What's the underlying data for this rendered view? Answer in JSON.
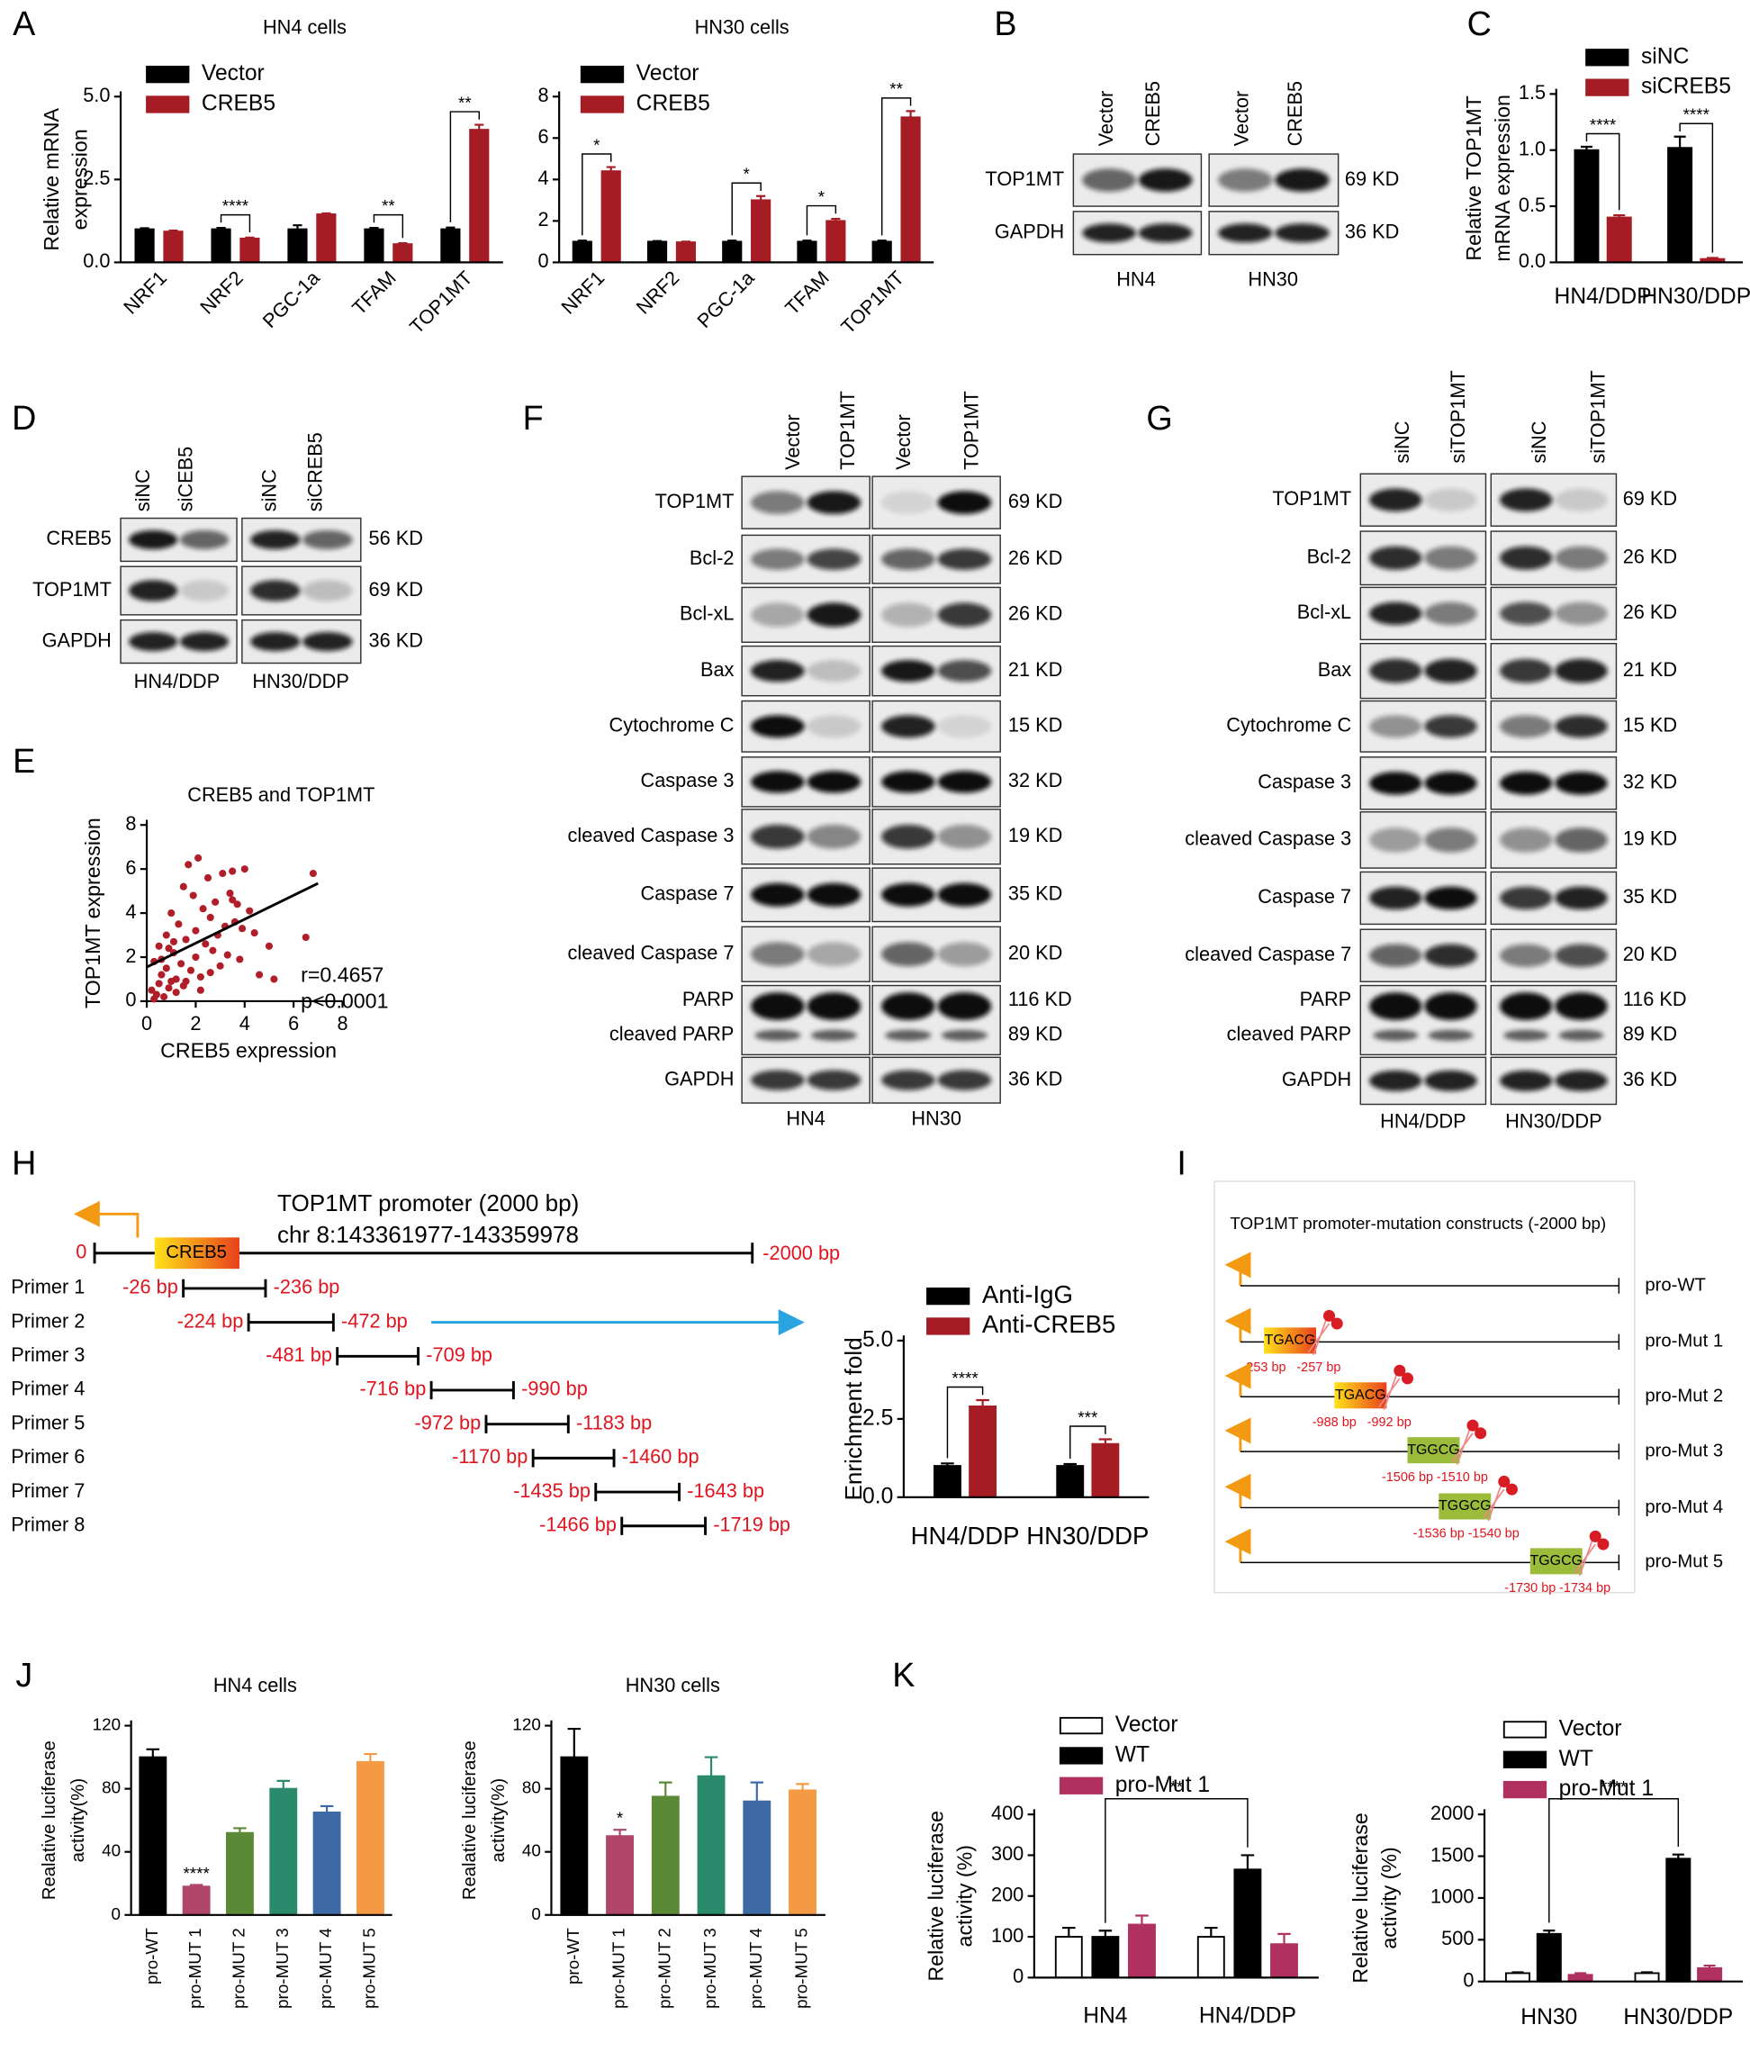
{
  "chart_data": [
    {
      "type": "bar",
      "title": "HN4 cells",
      "categories": [
        "NRF1",
        "NRF2",
        "PGC-1a",
        "TFAM",
        "TOP1MT"
      ],
      "series": [
        {
          "name": "Vector",
          "color": "#000000",
          "values": [
            1,
            1,
            1,
            1,
            1
          ],
          "errors": [
            0.03,
            0.04,
            0.12,
            0.04,
            0.05
          ]
        },
        {
          "name": "CREB5",
          "color": "#a51c24",
          "values": [
            0.93,
            0.72,
            1.45,
            0.55,
            4.0
          ],
          "errors": [
            0.03,
            0.03,
            0.03,
            0.03,
            0.15
          ]
        }
      ],
      "ylim": [
        0,
        5
      ],
      "yticks": [
        {
          "value": 0,
          "label": "0.0"
        },
        {
          "value": 2.5,
          "label": "2.5"
        },
        {
          "value": 5,
          "label": "5.0"
        }
      ],
      "ylabel": [
        "Relative mRNA",
        "expression"
      ],
      "significance": [
        null,
        "****",
        null,
        "**",
        "**"
      ]
    },
    {
      "type": "bar",
      "title": "HN30 cells",
      "categories": [
        "NRF1",
        "NRF2",
        "PGC-1a",
        "TFAM",
        "TOP1MT"
      ],
      "series": [
        {
          "name": "Vector",
          "color": "#000000",
          "values": [
            1,
            1,
            1,
            1,
            1
          ],
          "errors": [
            0.05,
            0.03,
            0.05,
            0.05,
            0.05
          ]
        },
        {
          "name": "CREB5",
          "color": "#a51c24",
          "values": [
            4.4,
            0.97,
            3.0,
            2.0,
            7.0
          ],
          "errors": [
            0.2,
            0.03,
            0.2,
            0.1,
            0.3
          ]
        }
      ],
      "ylim": [
        0,
        8
      ],
      "yticks": [
        0,
        2,
        4,
        6,
        8
      ],
      "significance": [
        "*",
        null,
        "*",
        "*",
        "**"
      ]
    },
    {
      "type": "bar",
      "categories": [
        "HN4/DDP",
        "HN30/DDP"
      ],
      "series": [
        {
          "name": "siNC",
          "color": "#000000",
          "values": [
            1.0,
            1.02
          ],
          "errors": [
            0.03,
            0.1
          ]
        },
        {
          "name": "siCREB5",
          "color": "#a51c24",
          "values": [
            0.4,
            0.03
          ],
          "errors": [
            0.02,
            0.01
          ]
        }
      ],
      "ylim": [
        0,
        1.5
      ],
      "yticks": [
        {
          "value": 0,
          "label": "0.0"
        },
        {
          "value": 0.5,
          "label": "0.5"
        },
        {
          "value": 1,
          "label": "1.0"
        },
        {
          "value": 1.5,
          "label": "1.5"
        }
      ],
      "ylabel": [
        "Relative TOP1MT",
        "mRNA  expression"
      ],
      "significance": [
        "****",
        "****"
      ]
    },
    {
      "type": "scatter",
      "title": "CREB5 and TOP1MT",
      "xlabel": "CREB5 expression",
      "ylabel": "TOP1MT expression",
      "color": "#b01e2a",
      "x": [
        0.2,
        0.3,
        0.4,
        0.5,
        0.5,
        0.6,
        0.7,
        0.8,
        0.8,
        0.9,
        1.0,
        1.0,
        1.1,
        1.2,
        1.2,
        1.3,
        1.4,
        1.5,
        1.5,
        1.6,
        1.7,
        1.8,
        1.9,
        2.0,
        2.0,
        2.1,
        2.2,
        2.3,
        2.4,
        2.5,
        2.6,
        2.7,
        2.8,
        2.9,
        3.0,
        3.1,
        3.2,
        3.3,
        3.4,
        3.5,
        3.6,
        3.7,
        3.8,
        3.9,
        4.0,
        4.2,
        4.4,
        4.6,
        5.0,
        5.2,
        6.5,
        6.8,
        0.3,
        0.6,
        1.1,
        1.6,
        2.2,
        2.6,
        3.5,
        0.9
      ],
      "y": [
        0.5,
        1.8,
        0.3,
        2.5,
        0.8,
        1.2,
        0.2,
        3.0,
        1.5,
        0.6,
        4.0,
        0.9,
        2.2,
        0.4,
        1.0,
        3.5,
        1.7,
        5.2,
        0.7,
        2.8,
        6.2,
        1.4,
        4.8,
        2.0,
        3.2,
        6.5,
        1.1,
        4.2,
        2.6,
        5.6,
        3.8,
        2.3,
        4.5,
        3.0,
        1.6,
        5.8,
        3.4,
        2.1,
        4.9,
        5.9,
        3.6,
        4.4,
        1.9,
        3.3,
        6.0,
        4.1,
        3.1,
        1.2,
        2.5,
        1.0,
        2.9,
        5.8,
        0.1,
        1.9,
        2.7,
        0.9,
        0.5,
        1.3,
        4.6,
        2.4
      ],
      "trendline": {
        "x": [
          0,
          7
        ],
        "y": [
          1.55,
          5.35
        ]
      },
      "xlim": [
        0,
        8
      ],
      "xticks": [
        0,
        2,
        4,
        6,
        8
      ],
      "ylim": [
        0,
        8
      ],
      "yticks": [
        0,
        2,
        4,
        6,
        8
      ],
      "annotations": [
        "r=0.4657",
        "p<0.0001"
      ]
    },
    {
      "type": "bar",
      "categories": [
        "HN4/DDP",
        "HN30/DDP"
      ],
      "series": [
        {
          "name": "Anti-IgG",
          "color": "#000000",
          "values": [
            1.0,
            1.0
          ],
          "errors": [
            0.08,
            0.06
          ]
        },
        {
          "name": "Anti-CREB5",
          "color": "#a51c24",
          "values": [
            2.9,
            1.7
          ],
          "errors": [
            0.2,
            0.15
          ]
        }
      ],
      "ylim": [
        0,
        5
      ],
      "yticks": [
        {
          "value": 0,
          "label": "0.0"
        },
        {
          "value": 2.5,
          "label": "2.5"
        },
        {
          "value": 5,
          "label": "5.0"
        }
      ],
      "ylabel": [
        "Enrichment fold"
      ],
      "significance": [
        "****",
        "***"
      ]
    },
    {
      "type": "bar",
      "title": "HN4 cells",
      "categories": [
        "pro-WT",
        "pro-MUT 1",
        "pro-MUT 2",
        "pro-MUT 3",
        "pro-MUT 4",
        "pro-MUT 5"
      ],
      "values": [
        100,
        18,
        52,
        80,
        65,
        97
      ],
      "errors": [
        5,
        1,
        3,
        5,
        4,
        5
      ],
      "colors": [
        "#000000",
        "#b0466a",
        "#5a8a36",
        "#2a8a6c",
        "#3d6aa5",
        "#f49a45"
      ],
      "ylim": [
        0,
        120
      ],
      "yticks": [
        0,
        40,
        80,
        120
      ],
      "ylabel": [
        "Realative luciferase",
        "activity(%)"
      ],
      "significance": [
        null,
        "****",
        null,
        null,
        null,
        null
      ]
    },
    {
      "type": "bar",
      "title": "HN30 cells",
      "categories": [
        "pro-WT",
        "pro-MUT 1",
        "pro-MUT 2",
        "pro-MUT 3",
        "pro-MUT 4",
        "pro-MUT 5"
      ],
      "values": [
        100,
        50,
        75,
        88,
        72,
        79
      ],
      "errors": [
        18,
        4,
        9,
        12,
        12,
        4
      ],
      "colors": [
        "#000000",
        "#b0466a",
        "#5a8a36",
        "#2a8a6c",
        "#3d6aa5",
        "#f49a45"
      ],
      "ylim": [
        0,
        120
      ],
      "yticks": [
        0,
        40,
        80,
        120
      ],
      "ylabel": [
        "Realative luciferase",
        "activity(%)"
      ],
      "significance": [
        null,
        "*",
        null,
        null,
        null,
        null
      ]
    },
    {
      "type": "bar",
      "categories": [
        "HN4",
        "HN4/DDP"
      ],
      "series": [
        {
          "name": "Vector",
          "color": "#ffffff",
          "values": [
            100,
            100
          ],
          "errors": [
            22,
            22
          ]
        },
        {
          "name": "WT",
          "color": "#000000",
          "values": [
            100,
            265
          ],
          "errors": [
            15,
            35
          ]
        },
        {
          "name": "pro-Mut 1",
          "color": "#b0305f",
          "values": [
            130,
            82
          ],
          "errors": [
            22,
            25
          ]
        }
      ],
      "ylim": [
        0,
        400
      ],
      "yticks": [
        0,
        100,
        200,
        300,
        400
      ],
      "ylabel": [
        "Relative luciferase",
        "activity (%)"
      ],
      "annotation": "**"
    },
    {
      "type": "bar",
      "categories": [
        "HN30",
        "HN30/DDP"
      ],
      "series": [
        {
          "name": "Vector",
          "color": "#ffffff",
          "values": [
            100,
            100
          ],
          "errors": [
            10,
            10
          ]
        },
        {
          "name": "WT",
          "color": "#000000",
          "values": [
            570,
            1470
          ],
          "errors": [
            40,
            50
          ]
        },
        {
          "name": "pro-Mut 1",
          "color": "#b0305f",
          "values": [
            80,
            160
          ],
          "errors": [
            20,
            30
          ]
        }
      ],
      "ylim": [
        0,
        2000
      ],
      "yticks": [
        0,
        500,
        1000,
        1500,
        2000
      ],
      "ylabel": [
        "Relative luciferase",
        "activity (%)"
      ],
      "annotation": "****"
    }
  ],
  "figure": {
    "panel_labels": [
      "A",
      "B",
      "C",
      "D",
      "E",
      "F",
      "G",
      "H",
      "I",
      "J",
      "K"
    ],
    "blots": [
      {
        "lanes": [
          "Vector",
          "CREB5",
          "Vector",
          "CREB5"
        ],
        "rows": [
          {
            "proteins": [
              "TOP1MT"
            ],
            "sizes": [
              "69 KD"
            ]
          },
          {
            "proteins": [
              "GAPDH"
            ],
            "sizes": [
              "36 KD"
            ]
          }
        ],
        "cells": [
          "HN4",
          "HN30"
        ]
      },
      {
        "lanes": [
          "siNC",
          "siCEB5",
          "siNC",
          "siCREB5"
        ],
        "rows": [
          {
            "proteins": [
              "CREB5"
            ],
            "sizes": [
              "56 KD"
            ]
          },
          {
            "proteins": [
              "TOP1MT"
            ],
            "sizes": [
              "69 KD"
            ]
          },
          {
            "proteins": [
              "GAPDH"
            ],
            "sizes": [
              "36 KD"
            ]
          }
        ],
        "cells": [
          "HN4/DDP",
          "HN30/DDP"
        ]
      },
      {
        "lanes": [
          "Vector",
          "TOP1MT",
          "Vector",
          "TOP1MT"
        ],
        "rows": [
          {
            "proteins": [
              "TOP1MT"
            ],
            "sizes": [
              "69 KD"
            ]
          },
          {
            "proteins": [
              "Bcl-2"
            ],
            "sizes": [
              "26 KD"
            ]
          },
          {
            "proteins": [
              "Bcl-xL"
            ],
            "sizes": [
              "26 KD"
            ]
          },
          {
            "proteins": [
              "Bax"
            ],
            "sizes": [
              "21 KD"
            ]
          },
          {
            "proteins": [
              "Cytochrome C"
            ],
            "sizes": [
              "15 KD"
            ]
          },
          {
            "proteins": [
              "Caspase 3"
            ],
            "sizes": [
              "32 KD"
            ]
          },
          {
            "proteins": [
              "cleaved Caspase 3"
            ],
            "sizes": [
              "19 KD"
            ]
          },
          {
            "proteins": [
              "Caspase 7"
            ],
            "sizes": [
              "35 KD"
            ]
          },
          {
            "proteins": [
              "cleaved Caspase 7"
            ],
            "sizes": [
              "20 KD"
            ]
          },
          {
            "proteins": [
              "PARP",
              "cleaved PARP"
            ],
            "sizes": [
              "116 KD",
              "89 KD"
            ]
          },
          {
            "proteins": [
              "GAPDH"
            ],
            "sizes": [
              "36 KD"
            ]
          }
        ],
        "cells": [
          "HN4",
          "HN30"
        ]
      },
      {
        "lanes": [
          "siNC",
          "siTOP1MT",
          "siNC",
          "siTOP1MT"
        ],
        "rows": [
          {
            "proteins": [
              "TOP1MT"
            ],
            "sizes": [
              "69 KD"
            ]
          },
          {
            "proteins": [
              "Bcl-2"
            ],
            "sizes": [
              "26 KD"
            ]
          },
          {
            "proteins": [
              "Bcl-xL"
            ],
            "sizes": [
              "26 KD"
            ]
          },
          {
            "proteins": [
              "Bax"
            ],
            "sizes": [
              "21 KD"
            ]
          },
          {
            "proteins": [
              "Cytochrome C"
            ],
            "sizes": [
              "15 KD"
            ]
          },
          {
            "proteins": [
              "Caspase 3"
            ],
            "sizes": [
              "32 KD"
            ]
          },
          {
            "proteins": [
              "cleaved Caspase 3"
            ],
            "sizes": [
              "19 KD"
            ]
          },
          {
            "proteins": [
              "Caspase 7"
            ],
            "sizes": [
              "35 KD"
            ]
          },
          {
            "proteins": [
              "cleaved Caspase 7"
            ],
            "sizes": [
              "20 KD"
            ]
          },
          {
            "proteins": [
              "PARP",
              "cleaved PARP"
            ],
            "sizes": [
              "116 KD",
              "89 KD"
            ]
          },
          {
            "proteins": [
              "GAPDH"
            ],
            "sizes": [
              "36 KD"
            ]
          }
        ],
        "cells": [
          "HN4/DDP",
          "HN30/DDP"
        ]
      }
    ],
    "promoter_map": {
      "title": [
        "TOP1MT promoter (2000 bp)",
        "chr 8:143361977-143359978"
      ],
      "site": "CREB5",
      "start": "0",
      "end": "-2000 bp",
      "primers": [
        {
          "name": "Primer 1",
          "start": "-26 bp",
          "end": "-236 bp"
        },
        {
          "name": "Primer 2",
          "start": "-224 bp",
          "end": "-472 bp"
        },
        {
          "name": "Primer 3",
          "start": "-481 bp",
          "end": "-709 bp"
        },
        {
          "name": "Primer 4",
          "start": "-716 bp",
          "end": "-990 bp"
        },
        {
          "name": "Primer 5",
          "start": "-972 bp",
          "end": "-1183 bp"
        },
        {
          "name": "Primer 6",
          "start": "-1170 bp",
          "end": "-1460 bp"
        },
        {
          "name": "Primer 7",
          "start": "-1435 bp",
          "end": "-1643 bp"
        },
        {
          "name": "Primer 8",
          "start": "-1466 bp",
          "end": "-1719 bp"
        }
      ]
    },
    "mutation_constructs": {
      "title": "TOP1MT promoter-mutation constructs (-2000 bp)",
      "constructs": [
        {
          "name": "pro-WT"
        },
        {
          "name": "pro-Mut 1",
          "site": "TGACG",
          "left": "-253 bp",
          "right": "-257 bp"
        },
        {
          "name": "pro-Mut 2",
          "site": "TGACG",
          "left": "-988 bp",
          "right": "-992 bp"
        },
        {
          "name": "pro-Mut 3",
          "site": "TGGCG",
          "left": "-1506 bp",
          "right": "-1510 bp"
        },
        {
          "name": "pro-Mut 4",
          "site": "TGGCG",
          "left": "-1536 bp",
          "right": "-1540 bp"
        },
        {
          "name": "pro-Mut 5",
          "site": "TGGCG",
          "left": "-1730 bp",
          "right": "-1734 bp"
        }
      ]
    }
  }
}
